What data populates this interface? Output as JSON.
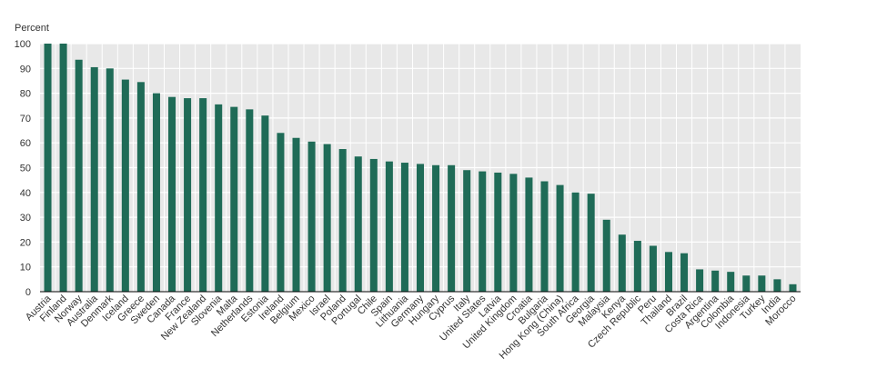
{
  "chart_data": {
    "type": "bar",
    "ylabel": "Percent",
    "ylim": [
      0,
      100
    ],
    "yticks": [
      0,
      10,
      20,
      30,
      40,
      50,
      60,
      70,
      80,
      90,
      100
    ],
    "grid": true,
    "categories": [
      "Austria",
      "Finland",
      "Norway",
      "Australia",
      "Denmark",
      "Iceland",
      "Greece",
      "Sweden",
      "Canada",
      "France",
      "New Zealand",
      "Slovenia",
      "Malta",
      "Netherlands",
      "Estonia",
      "Ireland",
      "Belgium",
      "Mexico",
      "Israel",
      "Poland",
      "Portugal",
      "Chile",
      "Spain",
      "Lithuania",
      "Germany",
      "Hungary",
      "Cyprus",
      "Italy",
      "United States",
      "Latvia",
      "United Kingdom",
      "Croatia",
      "Bulgaria",
      "Hong Kong (China)",
      "South Africa",
      "Georgia",
      "Malaysia",
      "Kenya",
      "Czech Republic",
      "Peru",
      "Thailand",
      "Brazil",
      "Costa Rica",
      "Argentina",
      "Colombia",
      "Indonesia",
      "Turkey",
      "India",
      "Morocco"
    ],
    "values": [
      100,
      100,
      93.5,
      90.5,
      90,
      85.5,
      84.5,
      80,
      78.5,
      78,
      78,
      75.5,
      74.5,
      73.5,
      71,
      64,
      62,
      60.5,
      59.5,
      57.5,
      54.5,
      53.5,
      52.5,
      52,
      51.5,
      51,
      51,
      49,
      48.5,
      48,
      47.5,
      46,
      44.5,
      43,
      40,
      39.5,
      29,
      23,
      20.5,
      18.5,
      16,
      15.5,
      9,
      8.5,
      8,
      6.5,
      6.5,
      5,
      3
    ],
    "colors": {
      "bar": "#1f6b57",
      "plot_bg": "#e8e8e8",
      "grid": "#ffffff",
      "axis": "#000000"
    }
  }
}
